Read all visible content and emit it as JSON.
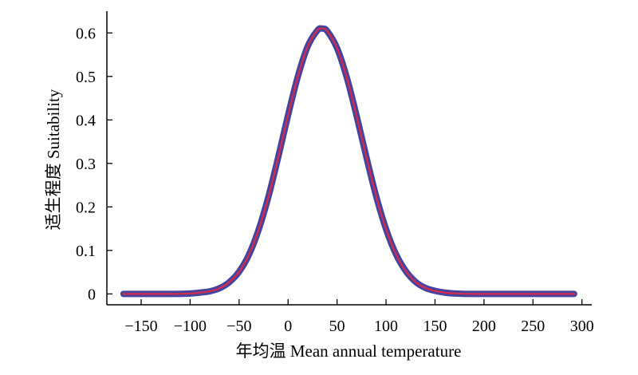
{
  "chart_data": {
    "type": "line",
    "title": "",
    "xlabel": "年均温 Mean annual temperature",
    "ylabel": "适生程度 Suitability",
    "xlim": [
      -185,
      310
    ],
    "ylim": [
      -0.025,
      0.65
    ],
    "xticks": [
      -150,
      -100,
      -50,
      0,
      50,
      100,
      150,
      200,
      250,
      300
    ],
    "xtick_labels": [
      "−150",
      "−100",
      "−50",
      "0",
      "50",
      "100",
      "150",
      "200",
      "250",
      "300"
    ],
    "yticks": [
      0,
      0.1,
      0.2,
      0.3,
      0.4,
      0.5,
      0.6
    ],
    "ytick_labels": [
      "0",
      "0.1",
      "0.2",
      "0.3",
      "0.4",
      "0.5",
      "0.6"
    ],
    "grid": false,
    "legend": "none",
    "series": [
      {
        "role": "response-band",
        "color": "#3a3a9a",
        "x": [
          -168,
          -140,
          -120,
          -100,
          -90,
          -80,
          -70,
          -60,
          -50,
          -40,
          -30,
          -20,
          -10,
          0,
          10,
          20,
          30,
          35,
          40,
          50,
          60,
          70,
          80,
          90,
          100,
          110,
          120,
          130,
          140,
          150,
          160,
          170,
          190,
          220,
          260,
          292
        ],
        "y": [
          0,
          0,
          0,
          0.001,
          0.003,
          0.006,
          0.013,
          0.027,
          0.051,
          0.09,
          0.148,
          0.224,
          0.315,
          0.411,
          0.5,
          0.569,
          0.606,
          0.61,
          0.604,
          0.565,
          0.497,
          0.409,
          0.314,
          0.224,
          0.149,
          0.092,
          0.053,
          0.028,
          0.014,
          0.007,
          0.003,
          0.001,
          0,
          0,
          0,
          0
        ]
      },
      {
        "role": "mean-curve",
        "color": "#d62a4a",
        "x": [
          -168,
          -140,
          -120,
          -100,
          -90,
          -80,
          -70,
          -60,
          -50,
          -40,
          -30,
          -20,
          -10,
          0,
          10,
          20,
          30,
          35,
          40,
          50,
          60,
          70,
          80,
          90,
          100,
          110,
          120,
          130,
          140,
          150,
          160,
          170,
          190,
          220,
          260,
          292
        ],
        "y": [
          0,
          0,
          0,
          0.001,
          0.003,
          0.006,
          0.013,
          0.027,
          0.051,
          0.09,
          0.148,
          0.224,
          0.315,
          0.411,
          0.5,
          0.569,
          0.606,
          0.61,
          0.604,
          0.565,
          0.497,
          0.409,
          0.314,
          0.224,
          0.149,
          0.092,
          0.053,
          0.028,
          0.014,
          0.007,
          0.003,
          0.001,
          0,
          0,
          0,
          0
        ]
      }
    ]
  }
}
